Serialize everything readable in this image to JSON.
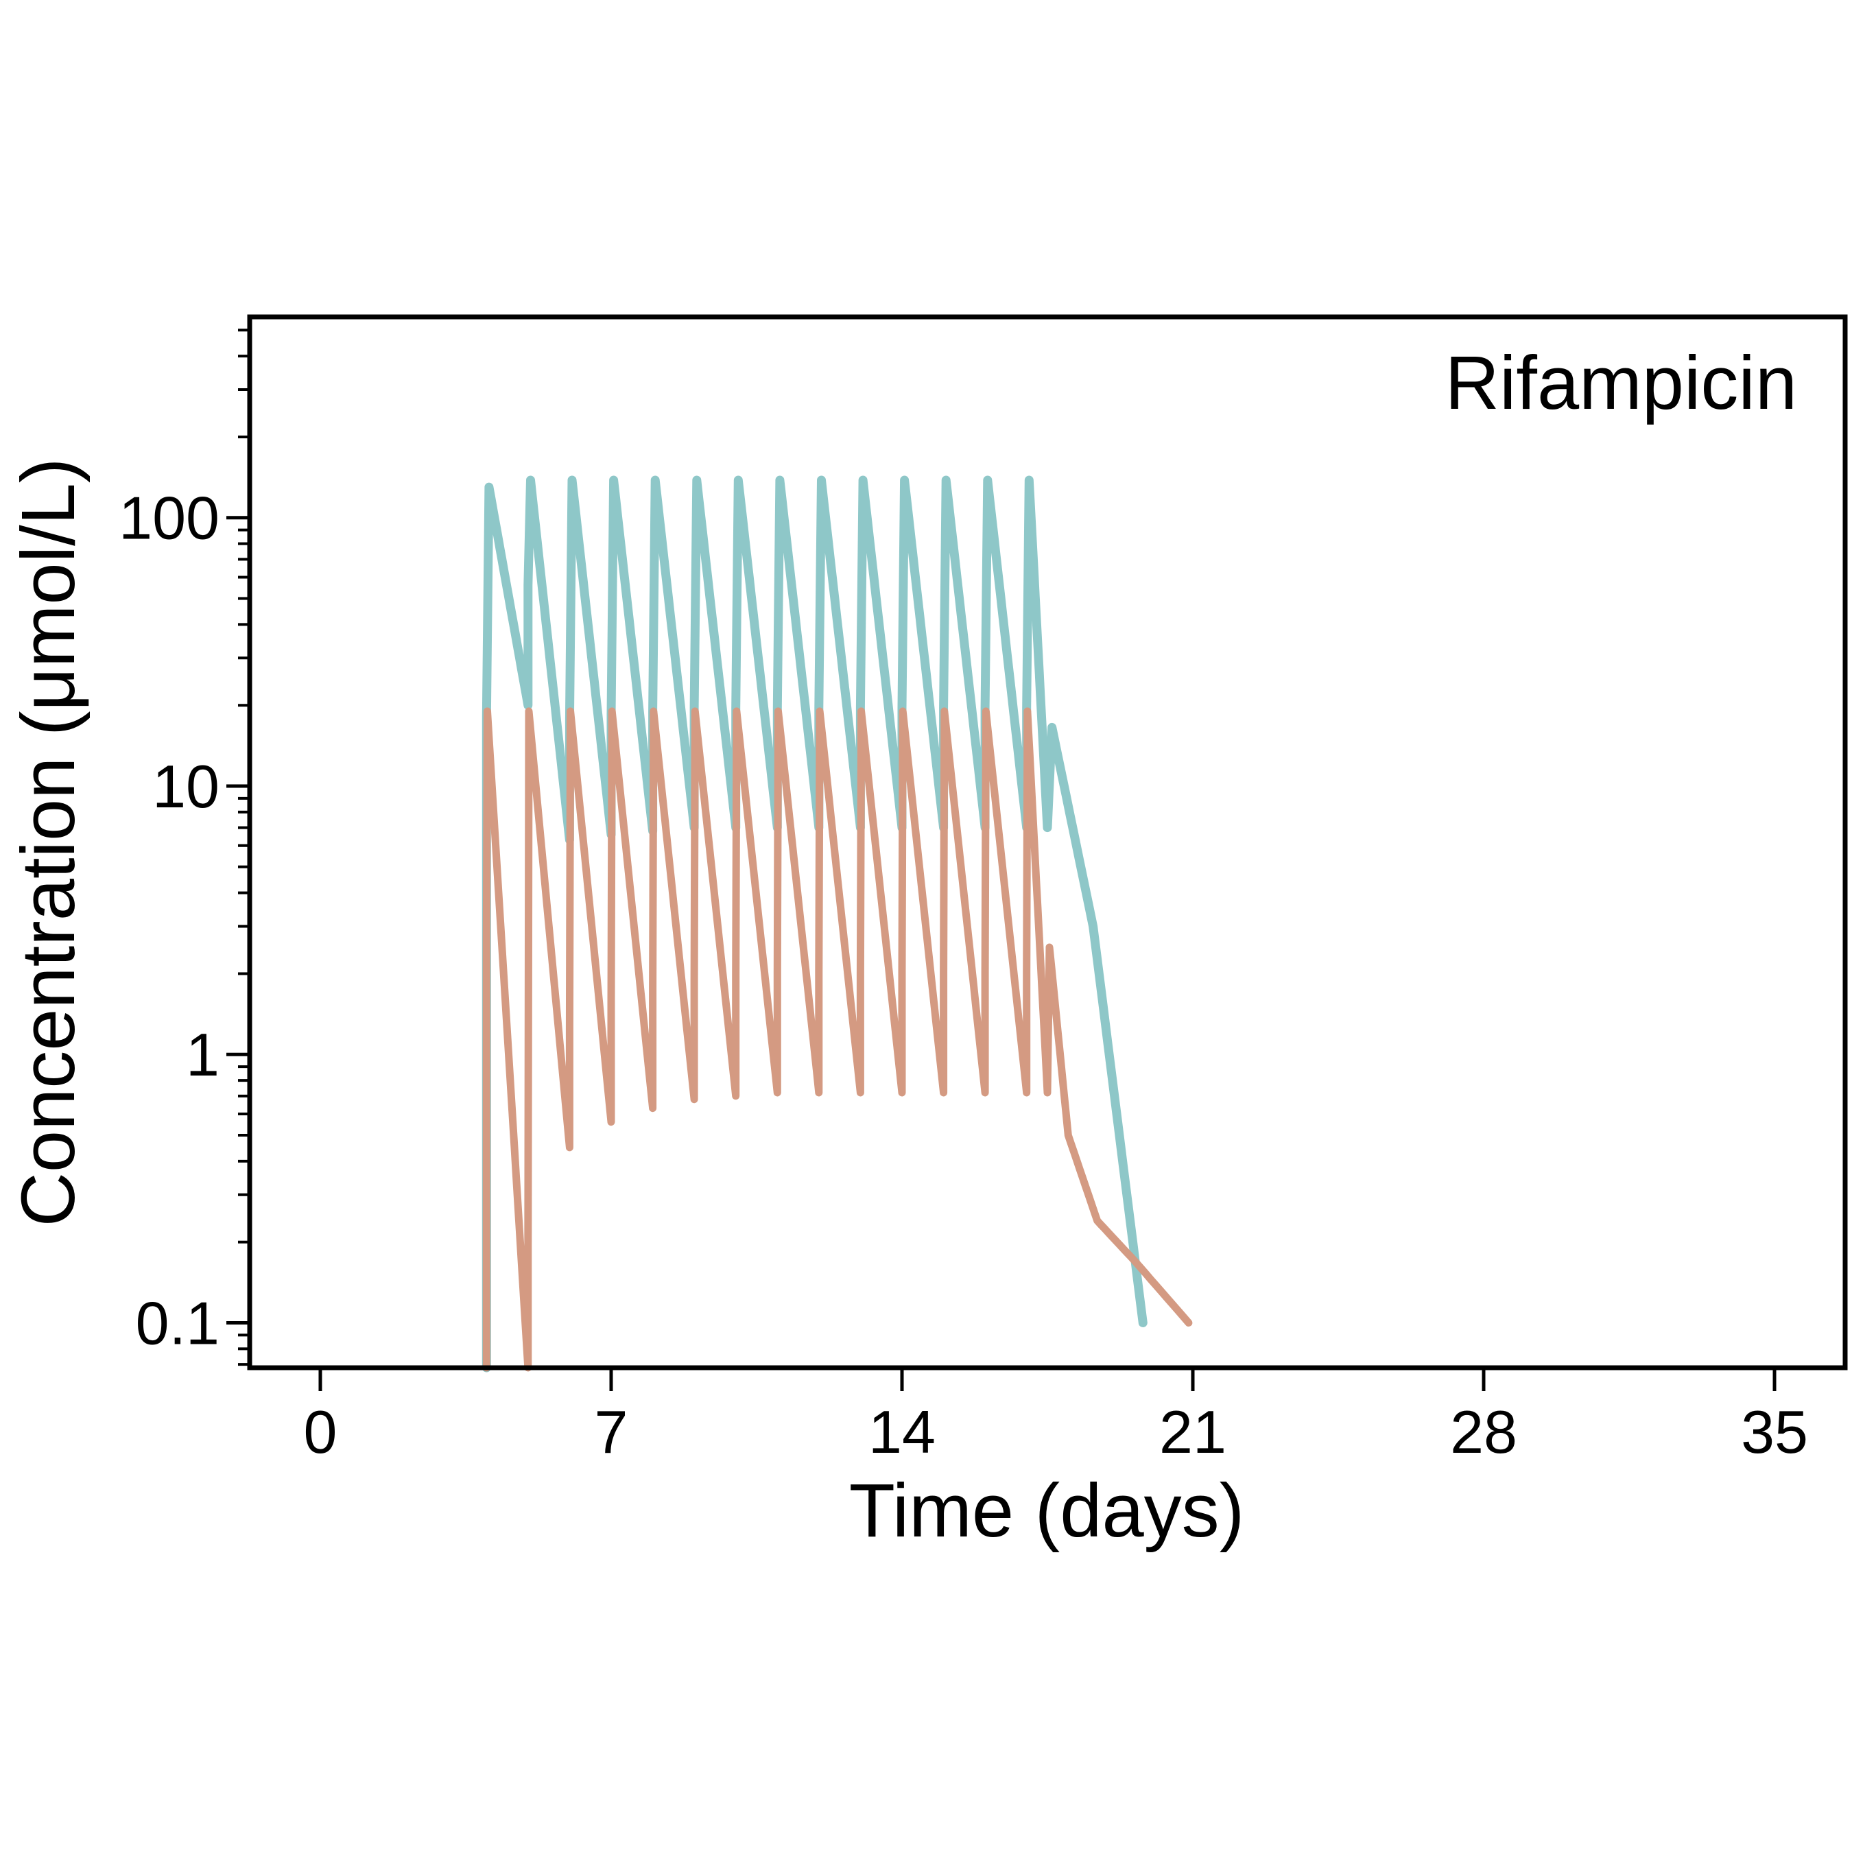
{
  "chart_data": {
    "type": "line",
    "title": "",
    "annotation": "Rifampicin",
    "xlabel": "Time (days)",
    "ylabel": "Concentration (μmol/L)",
    "xlim": [
      -1.7,
      36.7
    ],
    "ylim": [
      0.068,
      560
    ],
    "yscale": "log",
    "grid": false,
    "legend": "none",
    "x_ticks": [
      0,
      7,
      14,
      21,
      28,
      35
    ],
    "x_tick_labels": [
      "0",
      "7",
      "14",
      "21",
      "28",
      "35"
    ],
    "y_ticks": [
      0.1,
      1,
      10,
      100
    ],
    "y_tick_labels": [
      "0.1",
      "1",
      "10",
      "100"
    ],
    "series": [
      {
        "color": "#8ec7c8",
        "dose_times": [
          4,
          5,
          6,
          7,
          8,
          9,
          10,
          11,
          12,
          13,
          14,
          15,
          16,
          17
        ],
        "peak_offset_days": 0.06,
        "peaks": [
          130,
          138,
          138,
          138,
          138,
          138,
          138,
          138,
          138,
          138,
          138,
          138,
          138,
          138
        ],
        "troughs": [
          20,
          6.3,
          6.6,
          6.8,
          7.0,
          7.0,
          7.0,
          7.0,
          7.0,
          7.0,
          7.0,
          7.0,
          7.0,
          7.0
        ],
        "washout": [
          [
            17.5,
            20
          ],
          [
            18.6,
            3.0
          ],
          [
            19.8,
            0.1
          ]
        ]
      },
      {
        "color": "#d49a82",
        "dose_times": [
          4,
          5,
          6,
          7,
          8,
          9,
          10,
          11,
          12,
          13,
          14,
          15,
          16,
          17
        ],
        "peak_offset_days": 0.02,
        "peaks": [
          19,
          19,
          19,
          19,
          19,
          19,
          19,
          19,
          19,
          19,
          19,
          19,
          19,
          19
        ],
        "troughs": [
          0.068,
          0.45,
          0.56,
          0.63,
          0.68,
          0.7,
          0.72,
          0.72,
          0.72,
          0.72,
          0.72,
          0.72,
          0.72,
          0.72
        ],
        "washout": [
          [
            17.5,
            3.0
          ],
          [
            18.0,
            0.5
          ],
          [
            18.7,
            0.24
          ],
          [
            19.6,
            0.17
          ],
          [
            20.9,
            0.1
          ]
        ]
      }
    ]
  }
}
